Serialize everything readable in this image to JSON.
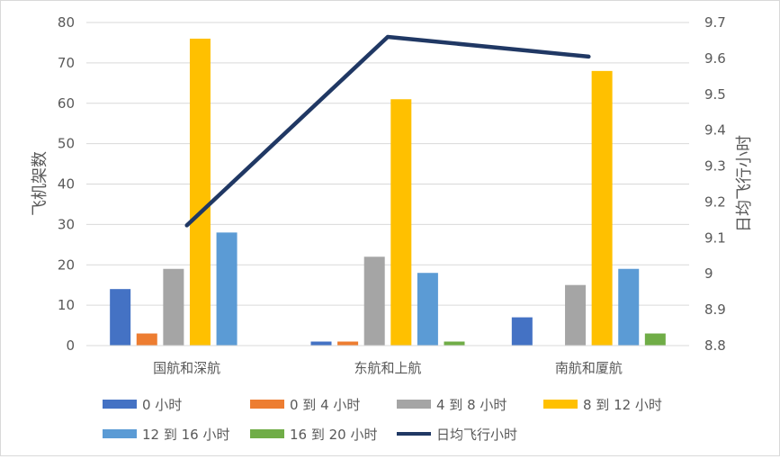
{
  "chart_data": {
    "type": "bar",
    "categories": [
      "国航和深航",
      "东航和上航",
      "南航和厦航"
    ],
    "series": [
      {
        "name": "0 小时",
        "values": [
          14,
          1,
          7
        ],
        "color": "#4472c4"
      },
      {
        "name": "0 到 4 小时",
        "values": [
          3,
          1,
          0
        ],
        "color": "#ed7d31"
      },
      {
        "name": "4 到 8 小时",
        "values": [
          19,
          22,
          15
        ],
        "color": "#a5a5a5"
      },
      {
        "name": "8 到 12 小时",
        "values": [
          76,
          61,
          68
        ],
        "color": "#ffc000"
      },
      {
        "name": "12 到 16 小时",
        "values": [
          28,
          18,
          19
        ],
        "color": "#5b9bd5"
      },
      {
        "name": "16 到 20 小时",
        "values": [
          0,
          1,
          3
        ],
        "color": "#70ad47"
      }
    ],
    "line_series": {
      "name": "日均飞行小时",
      "values": [
        9.135,
        9.66,
        9.605
      ],
      "color": "#203864",
      "axis": "right"
    },
    "ylabel": "飞机架数",
    "y2label": "日均飞行小时",
    "ylim": [
      0,
      80
    ],
    "y2lim": [
      8.8,
      9.7
    ],
    "yticks": [
      "0",
      "10",
      "20",
      "30",
      "40",
      "50",
      "60",
      "70",
      "80"
    ],
    "y2ticks": [
      "8.8",
      "8.9",
      "9",
      "9.1",
      "9.2",
      "9.3",
      "9.4",
      "9.5",
      "9.6",
      "9.7"
    ],
    "grid": true,
    "legend_position": "bottom"
  }
}
